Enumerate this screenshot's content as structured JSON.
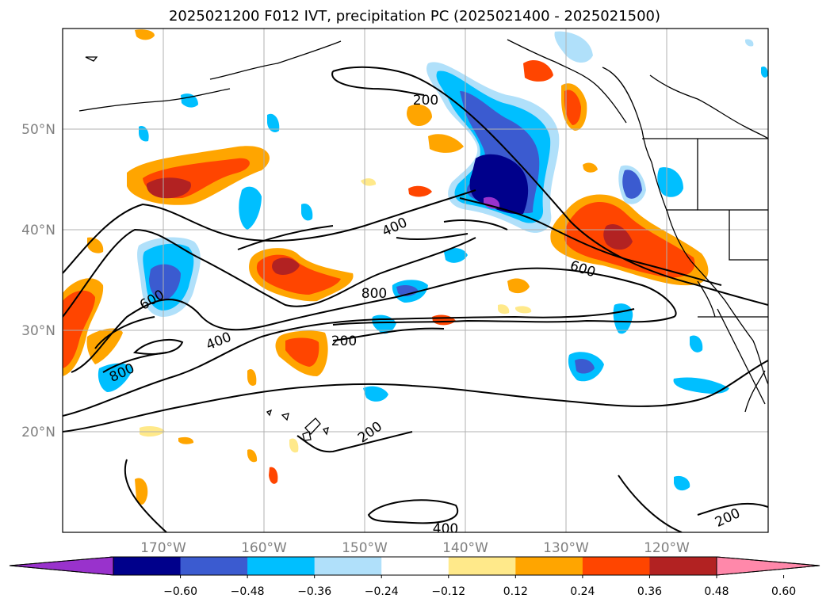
{
  "title": "2025021200 F012 IVT, precipitation PC (2025021400 - 2025021500)",
  "map": {
    "lon_range": [
      -180,
      -110
    ],
    "lat_range": [
      10,
      60
    ],
    "lon_ticks": [
      -170,
      -160,
      -150,
      -140,
      -130,
      -120
    ],
    "lat_ticks": [
      20,
      30,
      40,
      50
    ],
    "lon_tick_labels": [
      "170°W",
      "160°W",
      "150°W",
      "140°W",
      "130°W",
      "120°W"
    ],
    "lat_tick_labels": [
      "20°N",
      "30°N",
      "40°N",
      "50°N"
    ],
    "gridlines": true
  },
  "contour_labels": [
    "200",
    "400",
    "600",
    "800",
    "600",
    "400",
    "200",
    "800",
    "200",
    "200",
    "400",
    "200"
  ],
  "colorbar": {
    "extend": "both",
    "tick_labels": [
      "−0.60",
      "−0.48",
      "−0.36",
      "−0.24",
      "−0.12",
      "0.12",
      "0.24",
      "0.36",
      "0.48",
      "0.60"
    ],
    "colors": [
      "#9932cc",
      "#00008b",
      "#3b5bd0",
      "#00bfff",
      "#b0e0fa",
      "#ffffff",
      "#ffe98a",
      "#ffa500",
      "#ff4500",
      "#b22222",
      "#ff88aa"
    ]
  }
}
